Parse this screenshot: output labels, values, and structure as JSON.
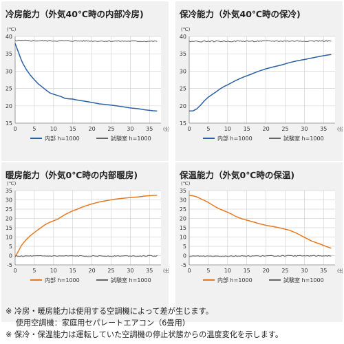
{
  "chart_data": [
    {
      "type": "line",
      "title": "冷房能力（外気40℃時の内部冷房)",
      "y_unit": "(℃)",
      "x_unit": "(分)",
      "ylim": [
        15,
        40
      ],
      "yticks": [
        15,
        20,
        25,
        30,
        35,
        40
      ],
      "xlim": [
        0,
        38
      ],
      "xticks": [
        0,
        5,
        10,
        15,
        20,
        25,
        30,
        35
      ],
      "grid": true,
      "legend": "bottom",
      "series": [
        {
          "name": "内部 h=1000",
          "color": "#2b5fa5",
          "x": [
            0,
            0.5,
            1,
            1.5,
            2,
            3,
            4,
            5,
            6,
            7,
            8,
            9,
            10,
            11,
            12,
            13,
            14,
            15,
            16,
            18,
            20,
            22,
            24,
            26,
            28,
            30,
            32,
            34,
            36,
            37
          ],
          "y": [
            38.0,
            36.5,
            35.0,
            33.5,
            32.2,
            30.3,
            28.8,
            27.6,
            26.4,
            25.4,
            24.6,
            23.8,
            23.3,
            23.0,
            22.6,
            22.2,
            22.0,
            21.9,
            21.7,
            21.4,
            21.0,
            20.6,
            20.3,
            20.0,
            19.7,
            19.4,
            19.1,
            18.8,
            18.5,
            18.5
          ]
        },
        {
          "name": "試験室 h=1000",
          "color": "#666666",
          "x": [
            0,
            37
          ],
          "y": [
            38.8,
            38.6
          ]
        }
      ]
    },
    {
      "type": "line",
      "title": "保冷能力（外気40℃時の保冷)",
      "y_unit": "(℃)",
      "x_unit": "(分)",
      "ylim": [
        15,
        40
      ],
      "yticks": [
        15,
        20,
        25,
        30,
        35,
        40
      ],
      "xlim": [
        0,
        38
      ],
      "xticks": [
        0,
        5,
        10,
        15,
        20,
        25,
        30,
        35
      ],
      "grid": true,
      "legend": "bottom",
      "series": [
        {
          "name": "内部 h=1000",
          "color": "#2b5fa5",
          "x": [
            0,
            1,
            2,
            3,
            4,
            5,
            6,
            7,
            8,
            9,
            10,
            12,
            14,
            16,
            18,
            20,
            22,
            24,
            26,
            28,
            30,
            32,
            34,
            36,
            37
          ],
          "y": [
            18.5,
            18.6,
            19.2,
            20.3,
            21.5,
            22.5,
            23.3,
            24.1,
            24.8,
            25.5,
            26.1,
            27.3,
            28.3,
            29.1,
            29.9,
            30.6,
            31.2,
            31.8,
            32.5,
            33.0,
            33.4,
            33.8,
            34.2,
            34.6,
            34.8
          ]
        },
        {
          "name": "試験室 h=1000",
          "color": "#666666",
          "x": [
            0,
            37
          ],
          "y": [
            38.6,
            38.7
          ]
        }
      ]
    },
    {
      "type": "line",
      "title": "暖房能力（外気0℃時の内部暖房)",
      "y_unit": "(℃)",
      "x_unit": "(分)",
      "ylim": [
        -5,
        35
      ],
      "yticks": [
        -5,
        0,
        5,
        10,
        15,
        20,
        25,
        30,
        35
      ],
      "xlim": [
        0,
        38
      ],
      "xticks": [
        0,
        5,
        10,
        15,
        20,
        25,
        30,
        35
      ],
      "grid": true,
      "legend": "bottom",
      "series": [
        {
          "name": "内部 h=1000",
          "color": "#e8781e",
          "x": [
            0,
            0.5,
            1,
            1.5,
            2,
            3,
            4,
            5,
            6,
            7,
            8,
            9,
            10,
            11,
            12,
            13,
            14,
            15,
            16,
            17,
            18,
            20,
            22,
            24,
            26,
            28,
            30,
            32,
            34,
            36,
            37
          ],
          "y": [
            -0.5,
            1.0,
            3.0,
            5.0,
            6.5,
            8.8,
            10.8,
            12.5,
            14.0,
            15.5,
            16.8,
            17.8,
            18.8,
            19.6,
            20.8,
            22.0,
            23.0,
            24.0,
            24.8,
            25.8,
            26.6,
            27.8,
            28.8,
            29.6,
            30.3,
            30.8,
            31.3,
            31.7,
            32.0,
            32.3,
            32.5
          ]
        },
        {
          "name": "試験室 h=1000",
          "color": "#666666",
          "x": [
            0,
            37
          ],
          "y": [
            -0.3,
            -0.2
          ]
        }
      ]
    },
    {
      "type": "line",
      "title": "保温能力（外気0℃時の保温)",
      "y_unit": "(℃)",
      "x_unit": "(分)",
      "ylim": [
        -5,
        35
      ],
      "yticks": [
        -5,
        0,
        5,
        10,
        15,
        20,
        25,
        30,
        35
      ],
      "xlim": [
        0,
        38
      ],
      "xticks": [
        0,
        5,
        10,
        15,
        20,
        25,
        30,
        35
      ],
      "grid": true,
      "legend": "bottom",
      "series": [
        {
          "name": "内部 h=1000",
          "color": "#e8781e",
          "x": [
            0,
            1,
            2,
            3,
            4,
            5,
            6,
            7,
            8,
            9,
            10,
            11,
            12,
            13,
            14,
            15,
            16,
            17,
            18,
            20,
            22,
            24,
            26,
            28,
            30,
            32,
            34,
            36,
            37
          ],
          "y": [
            32.5,
            32.2,
            31.6,
            30.7,
            29.6,
            28.5,
            27.3,
            26.2,
            25.1,
            24.1,
            23.3,
            22.3,
            21.2,
            20.3,
            19.6,
            19.0,
            18.6,
            18.0,
            17.4,
            16.4,
            15.5,
            14.6,
            13.6,
            12.0,
            9.8,
            7.8,
            6.2,
            4.6,
            4.0
          ]
        },
        {
          "name": "試験室 h=1000",
          "color": "#666666",
          "x": [
            0,
            37
          ],
          "y": [
            -0.3,
            -0.1
          ]
        }
      ]
    }
  ],
  "notes": [
    "※ 冷房・暖房能力は使用する空調機によって差が生じます。",
    "　 使用空調機：家庭用セパレートエアコン（6畳用)",
    "※ 保冷・保温能力は運転していた空調機の停止状態からの温度変化を示します。"
  ]
}
